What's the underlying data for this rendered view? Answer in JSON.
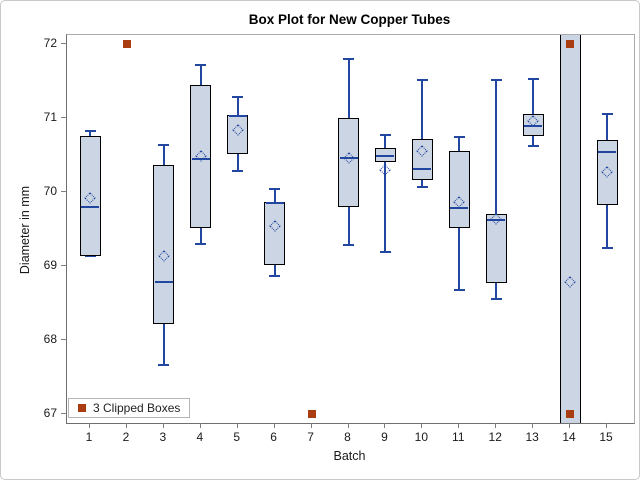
{
  "chart_data": {
    "type": "boxplot",
    "title": "Box Plot for New Copper Tubes",
    "xlabel": "Batch",
    "ylabel": "Diameter in mm",
    "x_categories": [
      1,
      2,
      3,
      4,
      5,
      6,
      7,
      8,
      9,
      10,
      11,
      12,
      13,
      14,
      15
    ],
    "y_ticks": [
      67,
      68,
      69,
      70,
      71,
      72
    ],
    "ylim": [
      66.88,
      72.12
    ],
    "grid": false,
    "legend": {
      "label": "3 Clipped Boxes",
      "position": "bottom-left-inside"
    },
    "colors": {
      "box_fill": "#ccd5e3",
      "box_border": "#000000",
      "line": "#2147a0",
      "clip_marker": "#a93c10",
      "axis": "#7f7f7f"
    },
    "batches": [
      {
        "batch": 1,
        "low": 69.13,
        "q1": 69.13,
        "median": 69.8,
        "q3": 70.76,
        "high": 70.82,
        "mean": 69.92
      },
      {
        "batch": 2,
        "clipped": "above",
        "clip_markers": [
          72
        ]
      },
      {
        "batch": 3,
        "low": 67.66,
        "q1": 68.21,
        "median": 68.79,
        "q3": 70.36,
        "high": 70.64,
        "mean": 69.13
      },
      {
        "batch": 4,
        "low": 69.3,
        "q1": 69.52,
        "median": 70.45,
        "q3": 71.45,
        "high": 71.72,
        "mean": 70.48
      },
      {
        "batch": 5,
        "low": 70.29,
        "q1": 70.51,
        "median": 71.03,
        "q3": 71.04,
        "high": 71.29,
        "mean": 70.84
      },
      {
        "batch": 6,
        "low": 68.86,
        "q1": 69.01,
        "median": 69.85,
        "q3": 69.86,
        "high": 70.04,
        "mean": 69.54
      },
      {
        "batch": 7,
        "clipped": "below",
        "clip_markers": [
          67
        ]
      },
      {
        "batch": 8,
        "low": 69.28,
        "q1": 69.8,
        "median": 70.46,
        "q3": 71.0,
        "high": 71.8,
        "mean": 70.46
      },
      {
        "batch": 9,
        "low": 69.19,
        "q1": 70.41,
        "median": 70.49,
        "q3": 70.59,
        "high": 70.77,
        "mean": 70.3
      },
      {
        "batch": 10,
        "low": 70.07,
        "q1": 70.16,
        "median": 70.31,
        "q3": 70.72,
        "high": 71.51,
        "mean": 70.56
      },
      {
        "batch": 11,
        "low": 68.67,
        "q1": 69.52,
        "median": 69.79,
        "q3": 70.55,
        "high": 70.75,
        "mean": 69.86
      },
      {
        "batch": 12,
        "low": 68.55,
        "q1": 68.77,
        "median": 69.62,
        "q3": 69.7,
        "high": 71.52,
        "mean": 69.63
      },
      {
        "batch": 13,
        "low": 70.62,
        "q1": 70.76,
        "median": 70.89,
        "q3": 71.05,
        "high": 71.53,
        "mean": 70.96
      },
      {
        "batch": 14,
        "clipped": "both",
        "q1": 66.8,
        "q3": 72.2,
        "mean": 68.79,
        "clip_markers": [
          72,
          67
        ]
      },
      {
        "batch": 15,
        "low": 69.24,
        "q1": 69.82,
        "median": 70.54,
        "q3": 70.7,
        "high": 71.06,
        "mean": 70.27
      }
    ]
  }
}
